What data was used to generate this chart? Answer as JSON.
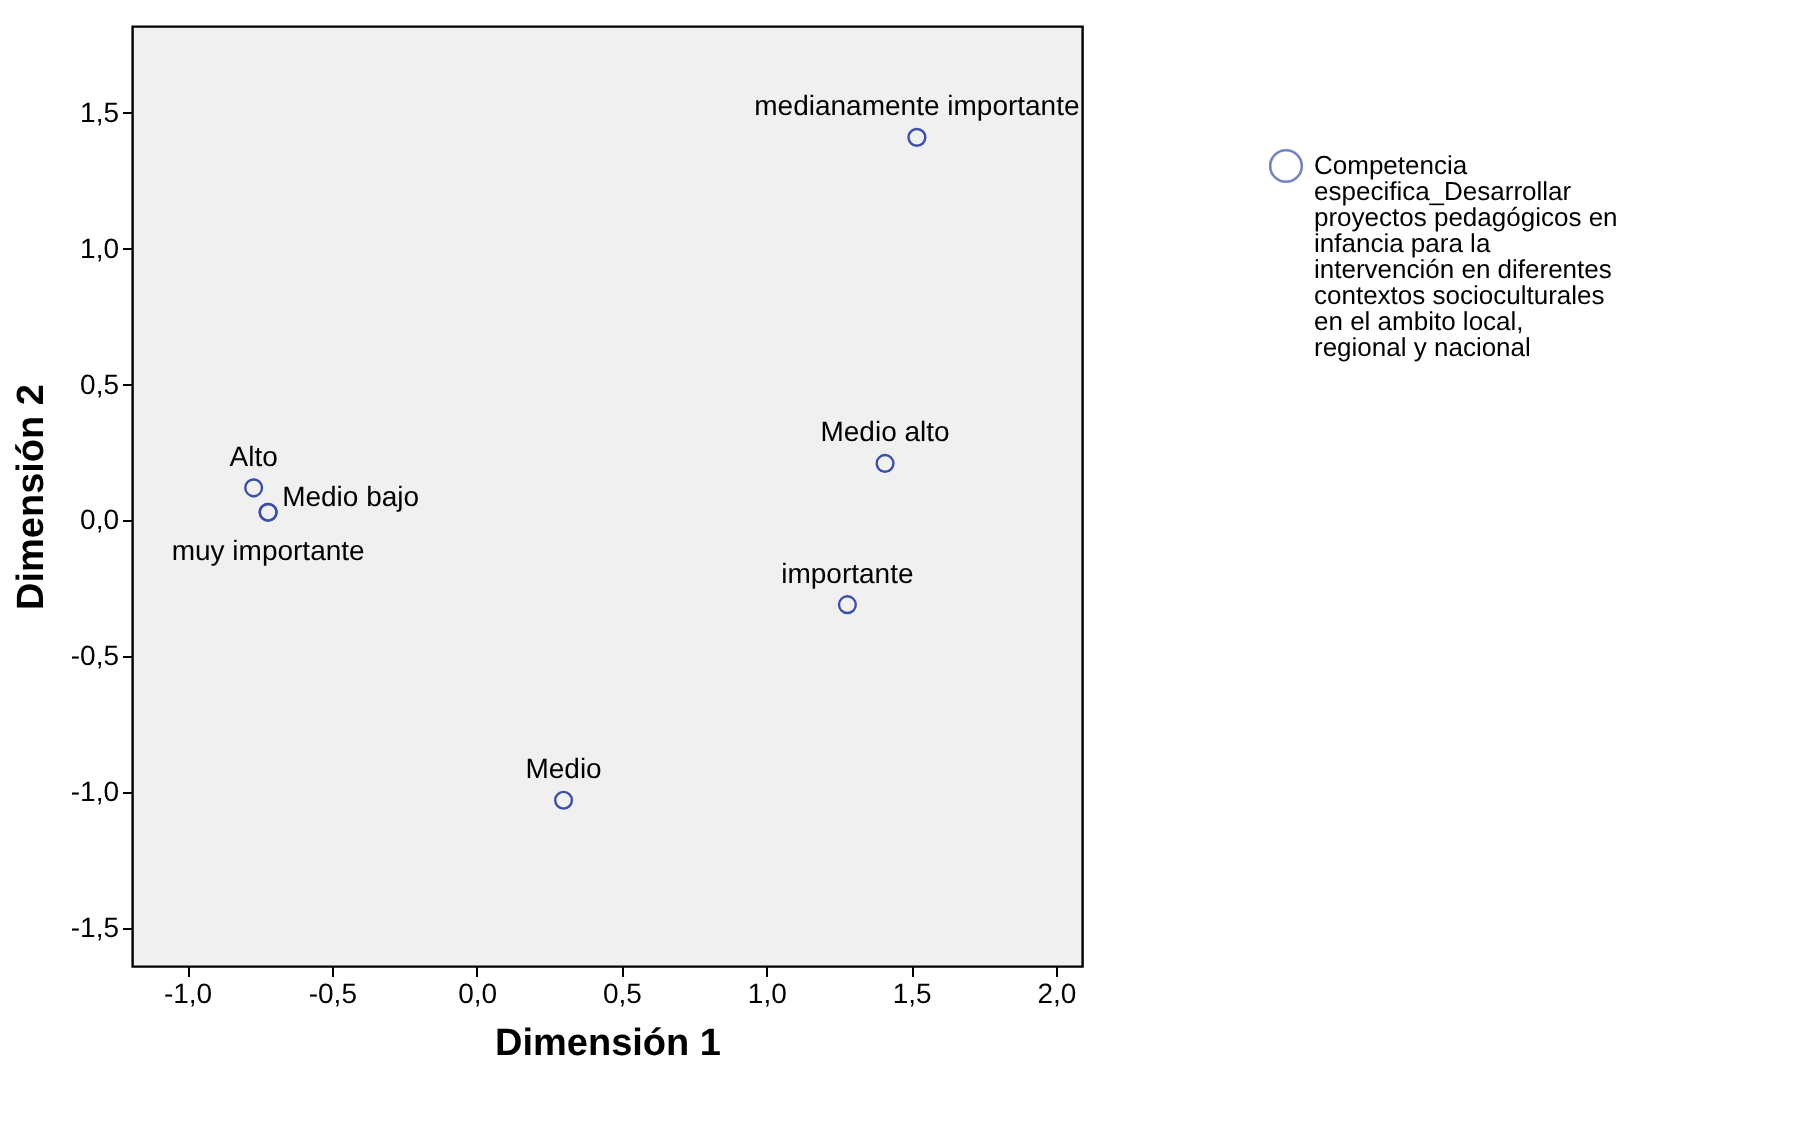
{
  "chart_data": {
    "type": "scatter",
    "xlabel": "Dimensión 1",
    "ylabel": "Dimensión 2",
    "series": [
      {
        "name": "Competencia especifica_Desarrollar proyectos pedagógicos en infancia para la intervención en diferentes contextos socioculturales en el ambito local, regional y nacional",
        "color": "#3b4fa8",
        "x": [
          -0.77,
          -0.72,
          -0.72,
          1.52,
          1.41,
          1.28,
          0.3
        ],
        "values": [
          0.12,
          0.03,
          0.03,
          1.41,
          0.21,
          -0.31,
          -1.03
        ]
      }
    ],
    "annotations": [
      {
        "text": "Alto",
        "x": -0.77,
        "y": 0.12
      },
      {
        "text": "Medio bajo",
        "x": -0.72,
        "y": 0.03
      },
      {
        "text": "muy importante",
        "x": -0.72,
        "y": 0.03
      },
      {
        "text": "medianamente importante",
        "x": 1.52,
        "y": 1.41
      },
      {
        "text": "Medio alto",
        "x": 1.41,
        "y": 0.21
      },
      {
        "text": "importante",
        "x": 1.28,
        "y": -0.31
      },
      {
        "text": "Medio",
        "x": 0.3,
        "y": -1.03
      }
    ],
    "xlim": [
      -1.19,
      2.09
    ],
    "ylim": [
      -1.64,
      1.82
    ],
    "xticks": [
      {
        "value": -1.0,
        "label": "-1,0"
      },
      {
        "value": -0.5,
        "label": "-0,5"
      },
      {
        "value": 0.0,
        "label": "0,0"
      },
      {
        "value": 0.5,
        "label": "0,5"
      },
      {
        "value": 1.0,
        "label": "1,0"
      },
      {
        "value": 1.5,
        "label": "1,5"
      },
      {
        "value": 2.0,
        "label": "2,0"
      }
    ],
    "yticks": [
      {
        "value": -1.5,
        "label": "-1,5"
      },
      {
        "value": -1.0,
        "label": "-1,0"
      },
      {
        "value": -0.5,
        "label": "-0,5"
      },
      {
        "value": 0.0,
        "label": "0,0"
      },
      {
        "value": 0.5,
        "label": "0,5"
      },
      {
        "value": 1.0,
        "label": "1,0"
      },
      {
        "value": 1.5,
        "label": "1,5"
      }
    ],
    "grid": false,
    "legend": "top right",
    "marker": "circle"
  }
}
